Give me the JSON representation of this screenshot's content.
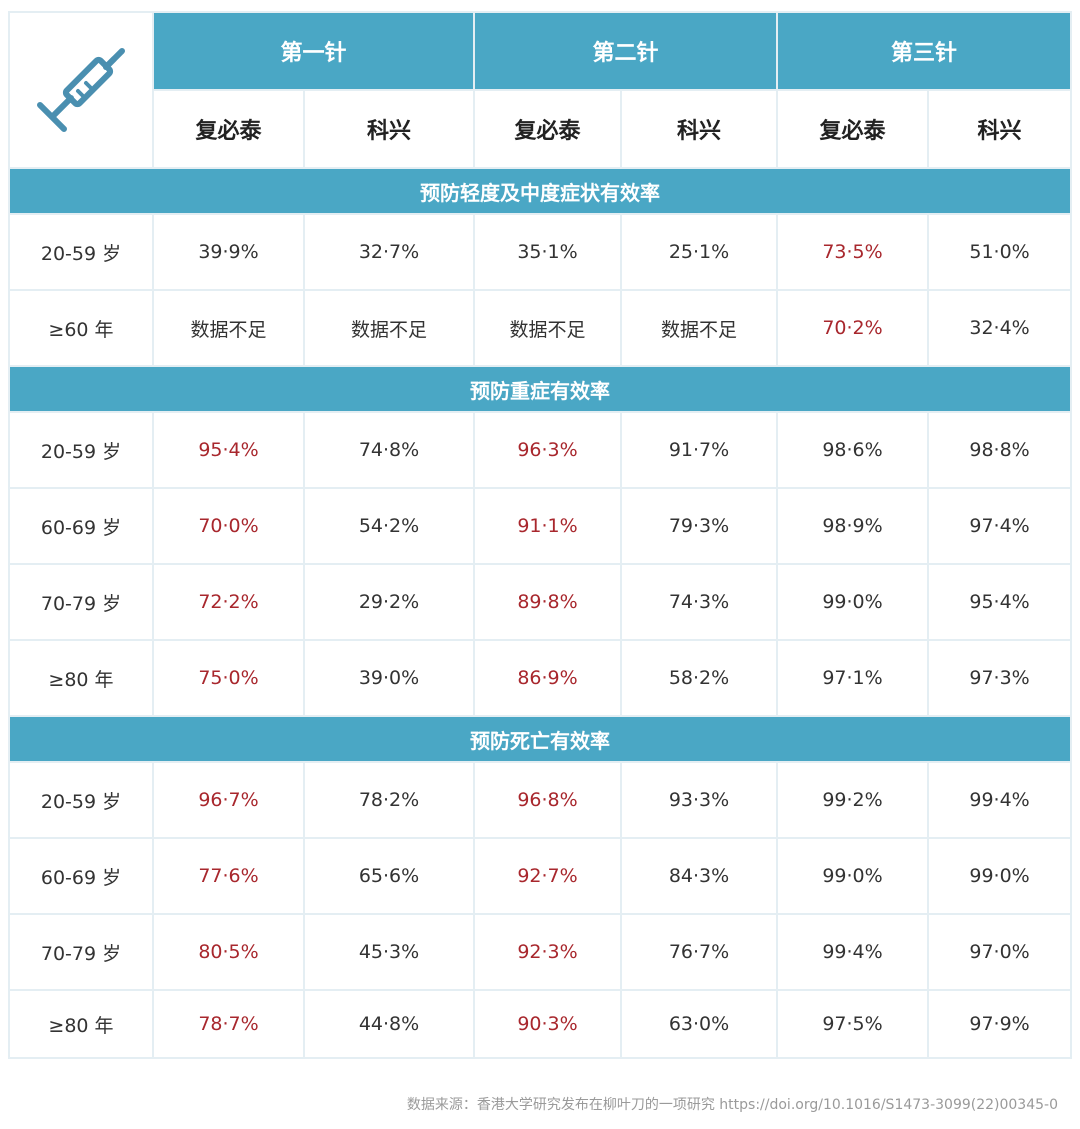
{
  "colors": {
    "header_bg": "#4aa7c5",
    "highlight": "#a8272d",
    "text": "#333333",
    "grid": "#e4eef3"
  },
  "corner_icon": "syringe-icon",
  "doses": [
    "第一针",
    "第二针",
    "第三针"
  ],
  "vaccines": [
    "复必泰",
    "科兴",
    "复必泰",
    "科兴",
    "复必泰",
    "科兴"
  ],
  "sections": [
    {
      "title": "预防轻度及中度症状有效率",
      "rows": [
        {
          "age": "20-59 岁",
          "values": [
            "39·9%",
            "32·7%",
            "35·1%",
            "25·1%",
            "73·5%",
            "51·0%"
          ],
          "highlight": [
            false,
            false,
            false,
            false,
            true,
            false
          ]
        },
        {
          "age": "≥60 年",
          "values": [
            "数据不足",
            "数据不足",
            "数据不足",
            "数据不足",
            "70·2%",
            "32·4%"
          ],
          "highlight": [
            false,
            false,
            false,
            false,
            true,
            false
          ]
        }
      ]
    },
    {
      "title": "预防重症有效率",
      "rows": [
        {
          "age": "20-59 岁",
          "values": [
            "95·4%",
            "74·8%",
            "96·3%",
            "91·7%",
            "98·6%",
            "98·8%"
          ],
          "highlight": [
            true,
            false,
            true,
            false,
            false,
            false
          ]
        },
        {
          "age": "60-69 岁",
          "values": [
            "70·0%",
            "54·2%",
            "91·1%",
            "79·3%",
            "98·9%",
            "97·4%"
          ],
          "highlight": [
            true,
            false,
            true,
            false,
            false,
            false
          ]
        },
        {
          "age": "70-79 岁",
          "values": [
            "72·2%",
            "29·2%",
            "89·8%",
            "74·3%",
            "99·0%",
            "95·4%"
          ],
          "highlight": [
            true,
            false,
            true,
            false,
            false,
            false
          ]
        },
        {
          "age": "≥80 年",
          "values": [
            "75·0%",
            "39·0%",
            "86·9%",
            "58·2%",
            "97·1%",
            "97·3%"
          ],
          "highlight": [
            true,
            false,
            true,
            false,
            false,
            false
          ]
        }
      ]
    },
    {
      "title": "预防死亡有效率",
      "rows": [
        {
          "age": "20-59 岁",
          "values": [
            "96·7%",
            "78·2%",
            "96·8%",
            "93·3%",
            "99·2%",
            "99·4%"
          ],
          "highlight": [
            true,
            false,
            true,
            false,
            false,
            false
          ]
        },
        {
          "age": "60-69 岁",
          "values": [
            "77·6%",
            "65·6%",
            "92·7%",
            "84·3%",
            "99·0%",
            "99·0%"
          ],
          "highlight": [
            true,
            false,
            true,
            false,
            false,
            false
          ]
        },
        {
          "age": "70-79 岁",
          "values": [
            "80·5%",
            "45·3%",
            "92·3%",
            "76·7%",
            "99·4%",
            "97·0%"
          ],
          "highlight": [
            true,
            false,
            true,
            false,
            false,
            false
          ]
        },
        {
          "age": "≥80 年",
          "values": [
            "78·7%",
            "44·8%",
            "90·3%",
            "63·0%",
            "97·5%",
            "97·9%"
          ],
          "highlight": [
            true,
            false,
            true,
            false,
            false,
            false
          ]
        }
      ]
    }
  ],
  "source": "数据来源：香港大学研究发布在柳叶刀的一项研究 https://doi.org/10.1016/S1473-3099(22)00345-0"
}
